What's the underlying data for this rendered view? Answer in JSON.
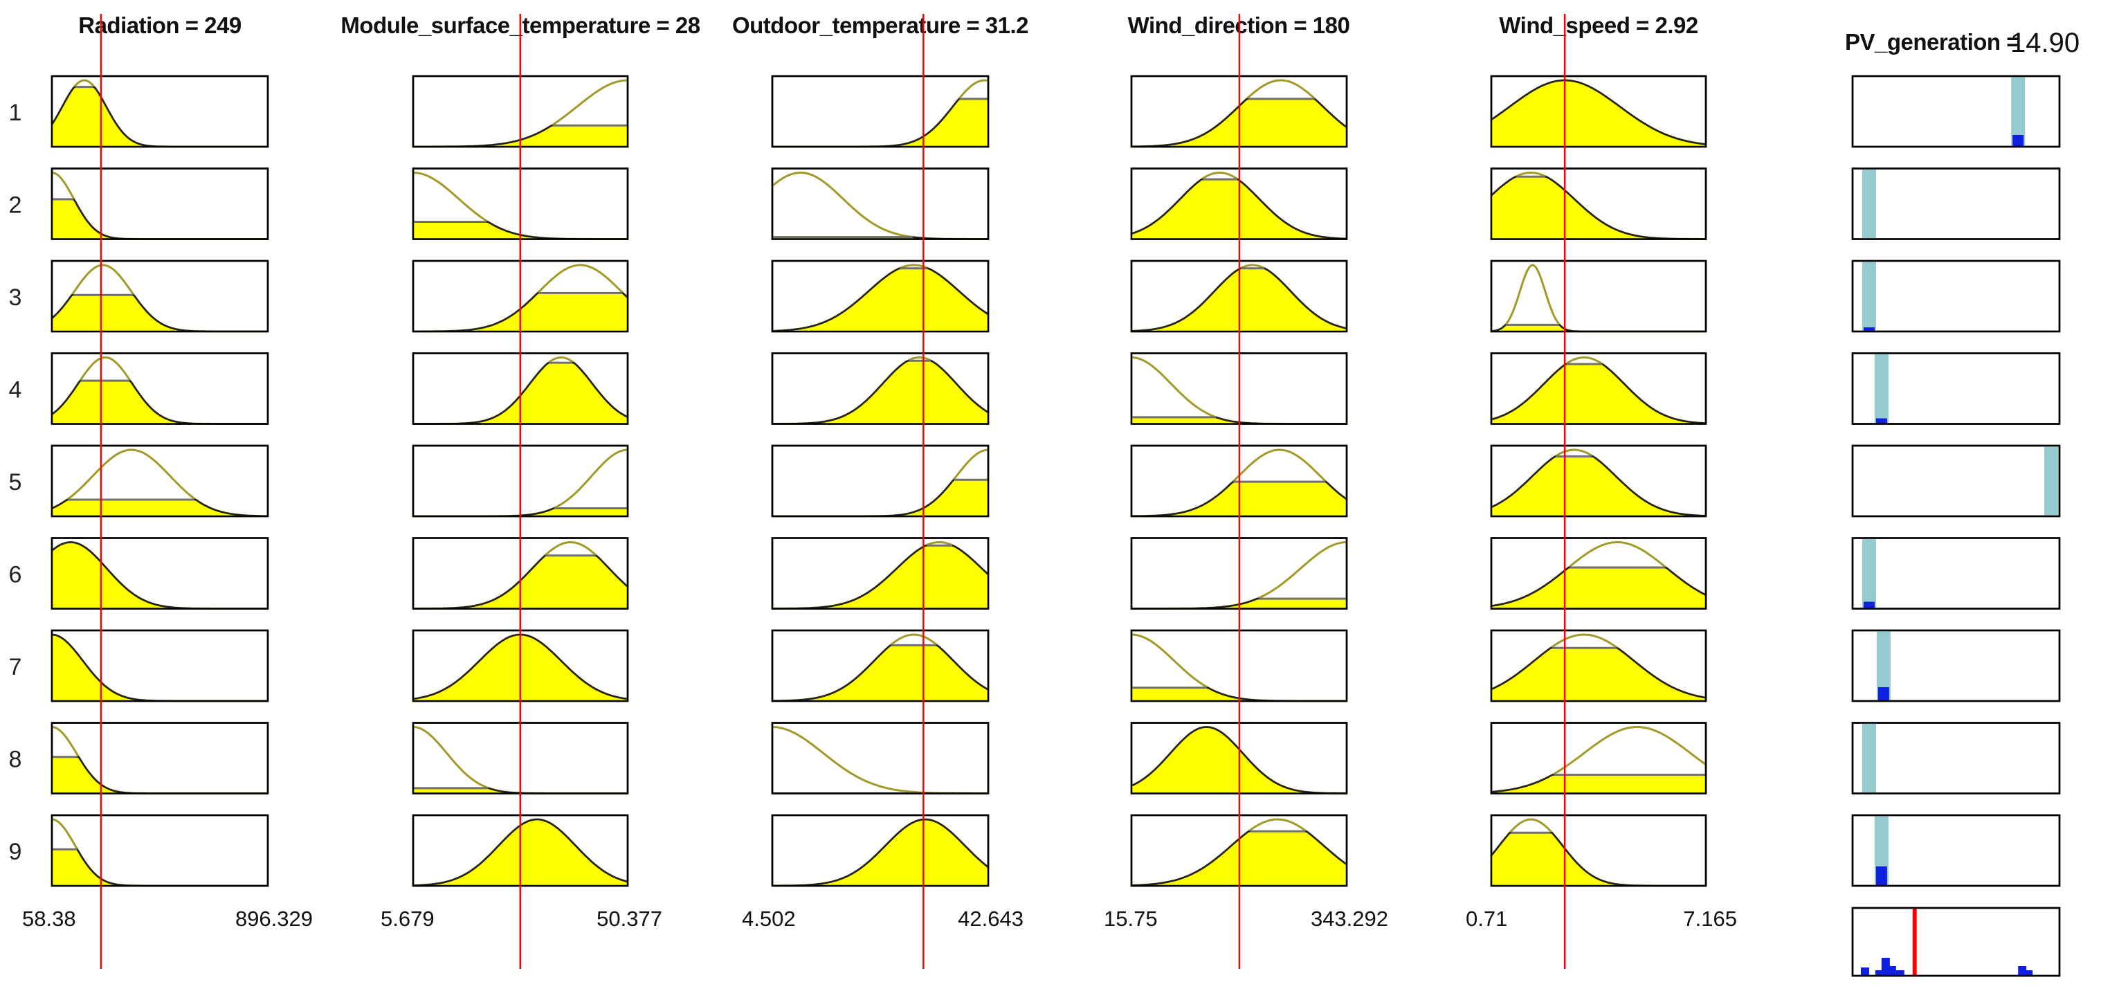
{
  "colors": {
    "fill": "#ffff00",
    "curve": "#a09a28",
    "level": "#707070",
    "cursor": "#ff0000",
    "output_bar": "#96cccf",
    "output_level": "#1020e0",
    "frame": "#000000"
  },
  "rule_numbers": [
    "1",
    "2",
    "3",
    "4",
    "5",
    "6",
    "7",
    "8",
    "9"
  ],
  "inputs": [
    {
      "title": "Radiation = 249",
      "min_label": "58.38",
      "max_label": "896.329",
      "range": [
        58.38,
        896.329
      ],
      "value": 249,
      "rules": [
        {
          "center": 184,
          "width": 85,
          "level": 0.9
        },
        {
          "center": 58.38,
          "width": 85,
          "level": 0.6
        },
        {
          "center": 256,
          "width": 110,
          "level": 0.55
        },
        {
          "center": 265,
          "width": 105,
          "level": 0.65
        },
        {
          "center": 367,
          "width": 150,
          "level": 0.25
        },
        {
          "center": 131,
          "width": 140,
          "level": 1.0
        },
        {
          "center": 58.38,
          "width": 120,
          "level": 1.0
        },
        {
          "center": 58.38,
          "width": 95,
          "level": 0.55
        },
        {
          "center": 58.38,
          "width": 90,
          "level": 0.55
        }
      ]
    },
    {
      "title": "Module_surface_temperature = 28",
      "min_label": "5.679",
      "max_label": "50.377",
      "range": [
        5.679,
        50.377
      ],
      "value": 28,
      "rules": [
        {
          "center": 50.377,
          "width": 10.5,
          "level": 0.32
        },
        {
          "center": 5.679,
          "width": 9.5,
          "level": 0.26
        },
        {
          "center": 40.5,
          "width": 8.5,
          "level": 0.58
        },
        {
          "center": 36.5,
          "width": 6.5,
          "level": 0.92
        },
        {
          "center": 50.377,
          "width": 7.5,
          "level": 0.12
        },
        {
          "center": 38.5,
          "width": 8.0,
          "level": 0.8
        },
        {
          "center": 28.0,
          "width": 8.5,
          "level": 1.0
        },
        {
          "center": 5.679,
          "width": 7.0,
          "level": 0.08
        },
        {
          "center": 31.5,
          "width": 8.0,
          "level": 1.0
        }
      ]
    },
    {
      "title": "Outdoor_temperature = 31.2",
      "min_label": "4.502",
      "max_label": "42.643",
      "range": [
        4.502,
        42.643
      ],
      "value": 31.2,
      "rules": [
        {
          "center": 42.0,
          "width": 5.6,
          "level": 0.72
        },
        {
          "center": 9.5,
          "width": 7.5,
          "level": 0.03
        },
        {
          "center": 29.5,
          "width": 8.0,
          "level": 0.95
        },
        {
          "center": 30.5,
          "width": 6.5,
          "level": 0.95
        },
        {
          "center": 42.643,
          "width": 5.6,
          "level": 0.55
        },
        {
          "center": 34.0,
          "width": 7.5,
          "level": 0.95
        },
        {
          "center": 29.5,
          "width": 7.0,
          "level": 0.84
        },
        {
          "center": 4.502,
          "width": 9.0,
          "level": 0.0
        },
        {
          "center": 31.5,
          "width": 7.0,
          "level": 1.0
        }
      ]
    },
    {
      "title": "Wind_direction = 180",
      "min_label": "15.75",
      "max_label": "343.292",
      "range": [
        15.75,
        343.292
      ],
      "value": 180,
      "rules": [
        {
          "center": 243,
          "width": 64,
          "level": 0.72
        },
        {
          "center": 150,
          "width": 60,
          "level": 0.9
        },
        {
          "center": 200,
          "width": 58,
          "level": 0.95
        },
        {
          "center": 15.75,
          "width": 60,
          "level": 0.1
        },
        {
          "center": 241,
          "width": 62,
          "level": 0.52
        },
        {
          "center": 343.292,
          "width": 70,
          "level": 0.15
        },
        {
          "center": 15.75,
          "width": 65,
          "level": 0.2
        },
        {
          "center": 130,
          "width": 55,
          "level": 1.0
        },
        {
          "center": 238,
          "width": 70,
          "level": 0.82
        }
      ]
    },
    {
      "title": "Wind_speed = 2.92",
      "min_label": "0.71",
      "max_label": "7.165",
      "range": [
        0.71,
        7.165
      ],
      "value": 2.92,
      "rules": [
        {
          "center": 2.92,
          "width": 1.65,
          "level": 1.0
        },
        {
          "center": 1.9,
          "width": 1.3,
          "level": 0.94
        },
        {
          "center": 1.95,
          "width": 0.38,
          "level": 0.1
        },
        {
          "center": 3.5,
          "width": 1.2,
          "level": 0.9
        },
        {
          "center": 3.2,
          "width": 1.25,
          "level": 0.9
        },
        {
          "center": 4.5,
          "width": 1.5,
          "level": 0.62
        },
        {
          "center": 3.5,
          "width": 1.5,
          "level": 0.8
        },
        {
          "center": 5.1,
          "width": 1.6,
          "level": 0.28
        },
        {
          "center": 1.9,
          "width": 0.95,
          "level": 0.8
        }
      ]
    }
  ],
  "output": {
    "title_label": "PV_generation = ",
    "title_value": "14.90",
    "rules": [
      {
        "position": 0.8,
        "level": 0.17
      },
      {
        "position": 0.08,
        "level": 0.0
      },
      {
        "position": 0.08,
        "level": 0.06
      },
      {
        "position": 0.14,
        "level": 0.08
      },
      {
        "position": 0.96,
        "level": 0.0
      },
      {
        "position": 0.08,
        "level": 0.1
      },
      {
        "position": 0.15,
        "level": 0.2
      },
      {
        "position": 0.08,
        "level": 0.0
      },
      {
        "position": 0.14,
        "level": 0.28
      }
    ],
    "aggregate_value": 0.3
  }
}
